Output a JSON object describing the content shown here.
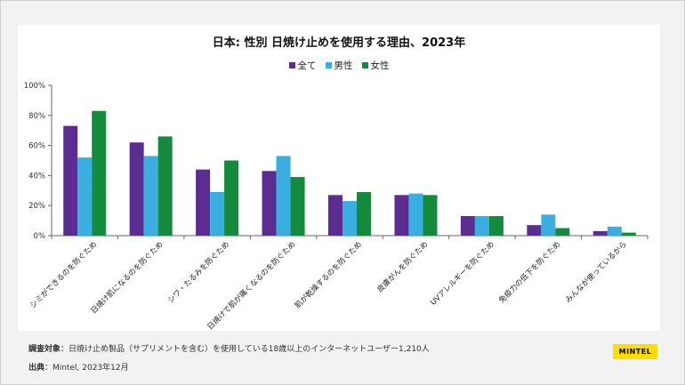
{
  "chart_data": {
    "type": "bar",
    "title": "日本: 性別 日焼け止めを使用する理由、2023年",
    "categories": [
      "シミができるのを防ぐため",
      "日焼け肌になるのを防ぐため",
      "シワ・たるみを防ぐため",
      "日焼けで肌が痛くなるのを防ぐため",
      "肌が乾燥するのを防ぐため",
      "皮膚がんを防ぐため",
      "UVアレルギーを防ぐため",
      "免疫力の低下を防ぐため",
      "みんなが使っているから"
    ],
    "series": [
      {
        "name": "全て",
        "color": "#5c2d91",
        "values": [
          73,
          62,
          44,
          43,
          27,
          27,
          13,
          7,
          3
        ]
      },
      {
        "name": "男性",
        "color": "#3aaee0",
        "values": [
          52,
          53,
          29,
          53,
          23,
          28,
          13,
          14,
          6
        ]
      },
      {
        "name": "女性",
        "color": "#138a3c",
        "values": [
          83,
          66,
          50,
          39,
          29,
          27,
          13,
          5,
          2
        ]
      }
    ],
    "ylim": [
      0,
      100
    ],
    "yticks": [
      "0%",
      "20%",
      "40%",
      "60%",
      "80%",
      "100%"
    ],
    "legend_position": "top",
    "grid": false
  },
  "footer": {
    "survey_label": "調査対象",
    "survey_text": "：日焼け止め製品（サプリメントを含む）を使用している18歳以上のインターネットユーザー1,210人",
    "source_label": "出典",
    "source_text": "：Mintel, 2023年12月"
  },
  "logo": "MINTEL"
}
